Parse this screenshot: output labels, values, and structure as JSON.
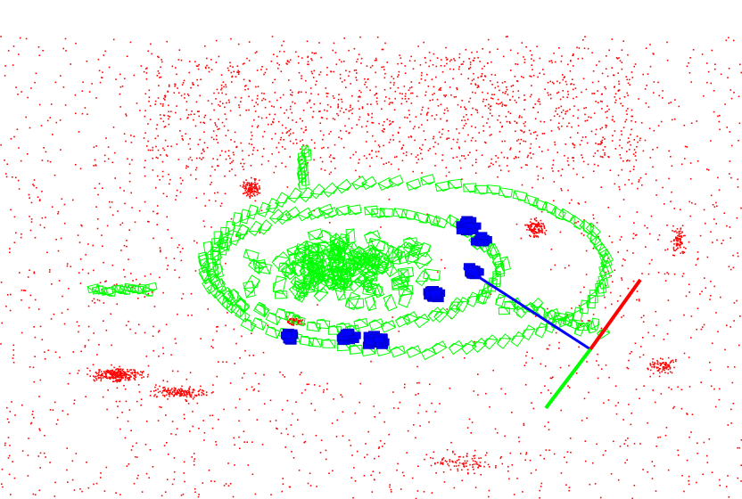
{
  "scene": {
    "type": "slam-map-visualization",
    "background": "#ffffff",
    "colors": {
      "map_points": "#ff0000",
      "keyframes": "#00ff00",
      "local_keyframes": "#0000ff",
      "current_camera_x_axis": "#ff0000",
      "current_camera_y_axis": "#00ff00",
      "trajectory_link": "#0000ff"
    },
    "layers": [
      "map-points",
      "keyframe-frustums",
      "local-keyframes",
      "current-camera-axes"
    ]
  }
}
